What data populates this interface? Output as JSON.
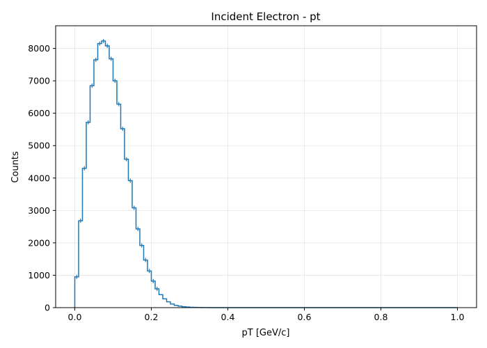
{
  "chart_data": {
    "type": "bar",
    "title": "Incident Electron - pt",
    "xlabel": "pT [GeV/c]",
    "ylabel": "Counts",
    "xlim": [
      -0.05,
      1.05
    ],
    "ylim": [
      0,
      8700
    ],
    "xticks": [
      "0.0",
      "0.2",
      "0.4",
      "0.6",
      "0.8",
      "1.0"
    ],
    "xtick_values": [
      0.0,
      0.2,
      0.4,
      0.6,
      0.8,
      1.0
    ],
    "yticks": [
      "0",
      "1000",
      "2000",
      "3000",
      "4000",
      "5000",
      "6000",
      "7000",
      "8000"
    ],
    "ytick_values": [
      0,
      1000,
      2000,
      3000,
      4000,
      5000,
      6000,
      7000,
      8000
    ],
    "grid": true,
    "color": "#1f77b4",
    "histogram": {
      "range": [
        0.0,
        1.0
      ],
      "bin_width": 0.01,
      "counts": [
        950,
        2680,
        4300,
        5720,
        6850,
        7650,
        8150,
        8230,
        8080,
        7680,
        7000,
        6280,
        5520,
        4580,
        3920,
        3080,
        2430,
        1920,
        1470,
        1130,
        820,
        580,
        400,
        270,
        180,
        110,
        70,
        45,
        30,
        20,
        12,
        8,
        5,
        3,
        2,
        1,
        1,
        0,
        0,
        0,
        0,
        0,
        0,
        0,
        0,
        0,
        0,
        0,
        0,
        0,
        0,
        0,
        0,
        0,
        0,
        0,
        0,
        0,
        0,
        0,
        0,
        0,
        0,
        0,
        0,
        0,
        0,
        0,
        0,
        0,
        0,
        0,
        0,
        0,
        0,
        0,
        0,
        0,
        0,
        0,
        0,
        0,
        0,
        0,
        0,
        0,
        0,
        0,
        0,
        0,
        0,
        0,
        0,
        0,
        0,
        0,
        0,
        0,
        0,
        0
      ]
    }
  }
}
